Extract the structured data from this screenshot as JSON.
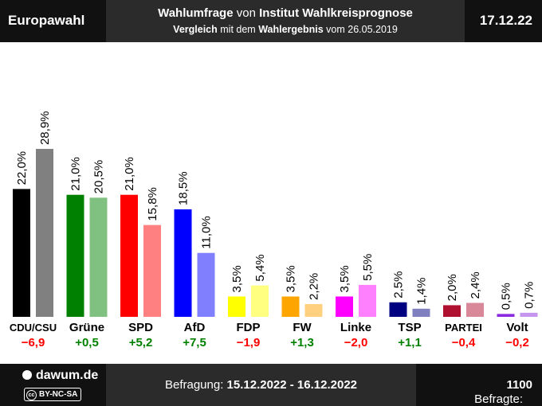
{
  "header": {
    "left_label": "Europawahl",
    "date": "17.12.22",
    "title_bold": "Wahlumfrage",
    "title_mid": "von",
    "title_bold2": "Institut Wahlkreisprognose",
    "subtitle_bold": "Vergleich",
    "subtitle_mid": "mit dem",
    "subtitle_bold2": "Wahlergebnis",
    "subtitle_end": "vom 26.05.2019"
  },
  "footer": {
    "logo": "dawum.de",
    "license": "BY-NC-SA",
    "license_icon": "cc",
    "survey_label": "Befragung:",
    "survey_period": "15.12.2022 - 16.12.2022",
    "respondents_label": "Befragte:",
    "respondents_value": "1100"
  },
  "chart_data": {
    "type": "bar",
    "categories": [
      "CDU/CSU",
      "Grüne",
      "SPD",
      "AfD",
      "FDP",
      "FW",
      "Linke",
      "TSP",
      "PARTEI",
      "Volt"
    ],
    "series": [
      {
        "values": [
          22.0,
          21.0,
          21.0,
          18.5,
          3.5,
          3.5,
          3.5,
          2.5,
          2.0,
          0.5
        ],
        "labels": [
          "22,0%",
          "21,0%",
          "21,0%",
          "18,5%",
          "3,5%",
          "3,5%",
          "3,5%",
          "2,5%",
          "2,0%",
          "0,5%"
        ]
      },
      {
        "values": [
          28.9,
          20.5,
          15.8,
          11.0,
          5.4,
          2.2,
          5.5,
          1.4,
          2.4,
          0.7
        ],
        "labels": [
          "28,9%",
          "20,5%",
          "15,8%",
          "11,0%",
          "5,4%",
          "2,2%",
          "5,5%",
          "1,4%",
          "2,4%",
          "0,7%"
        ]
      }
    ],
    "changes": [
      "−6,9",
      "+0,5",
      "+5,2",
      "+7,5",
      "−1,9",
      "+1,3",
      "−2,0",
      "+1,1",
      "−0,4",
      "−0,2"
    ],
    "colors": [
      "#000000",
      "#008000",
      "#ff0000",
      "#0000ff",
      "#ffff00",
      "#ffa500",
      "#ff00ff",
      "#000080",
      "#b01030",
      "#8a2be2"
    ],
    "colors_2019": [
      "#808080",
      "#80c080",
      "#ff8080",
      "#8080ff",
      "#ffff80",
      "#ffd080",
      "#ff80ff",
      "#8080c0",
      "#d88898",
      "#c595f0"
    ],
    "change_colors": {
      "positive": "#008000",
      "negative": "#ff0000"
    },
    "grid": false,
    "legend": "none"
  }
}
